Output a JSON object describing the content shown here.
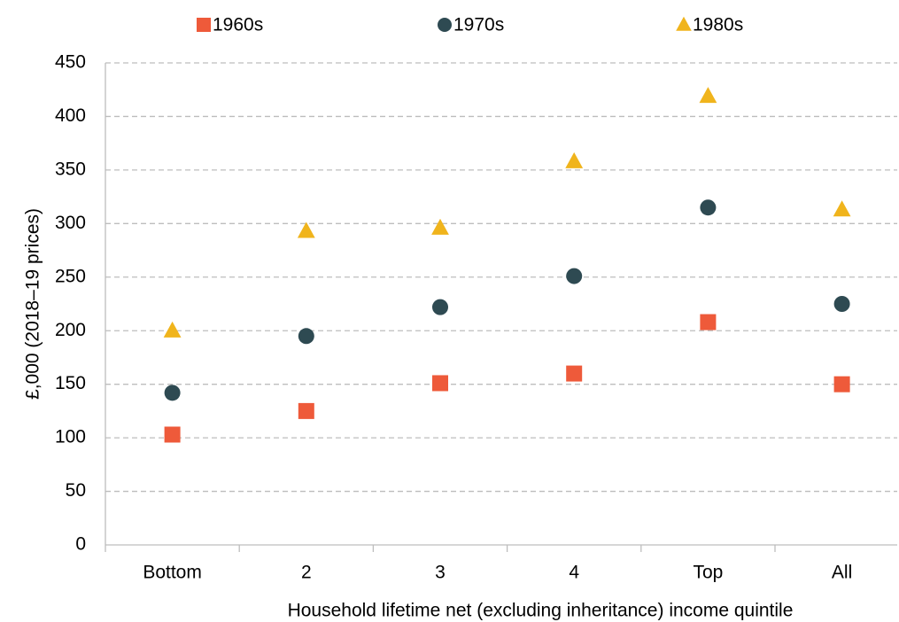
{
  "chart_data": {
    "type": "dot",
    "x_label": "Household lifetime net (excluding inheritance) income quintile",
    "y_label": "£,000 (2018–19 prices)",
    "categories": [
      "Bottom",
      "2",
      "3",
      "4",
      "Top",
      "All"
    ],
    "series": [
      {
        "name": "1960s",
        "color": "#ee5a3a",
        "marker": "square",
        "values": [
          103,
          125,
          151,
          160,
          208,
          150
        ]
      },
      {
        "name": "1970s",
        "color": "#2e4a52",
        "marker": "circle",
        "values": [
          142,
          195,
          222,
          251,
          315,
          225
        ]
      },
      {
        "name": "1980s",
        "color": "#f0b41c",
        "marker": "triangle",
        "values": [
          200,
          293,
          296,
          358,
          419,
          313
        ]
      }
    ],
    "ylim": [
      0,
      450
    ],
    "yticks": [
      0,
      50,
      100,
      150,
      200,
      250,
      300,
      350,
      400,
      450
    ],
    "grid": true,
    "legend": "top"
  }
}
